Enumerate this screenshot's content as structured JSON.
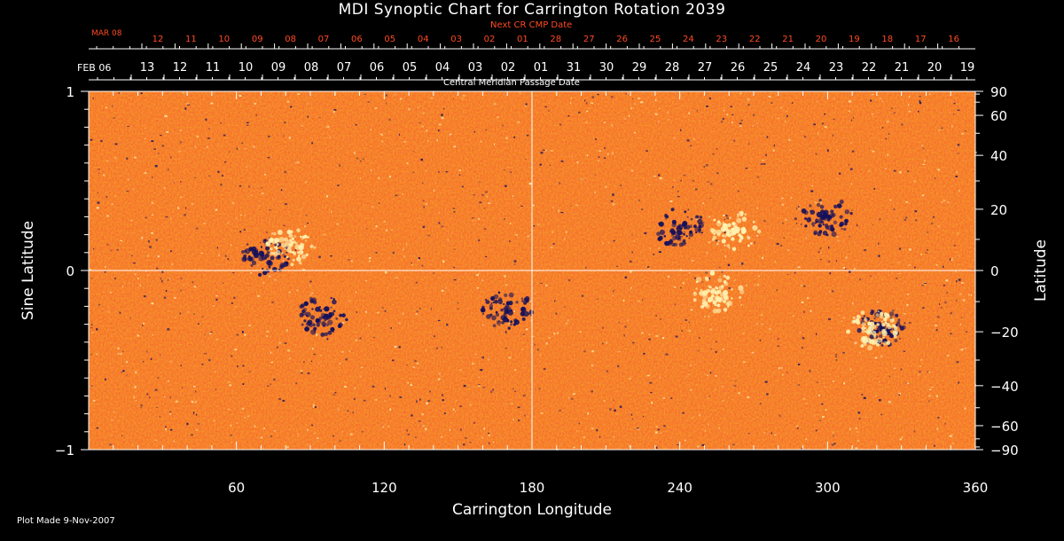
{
  "title": "MDI Synoptic Chart for Carrington Rotation 2039",
  "top_axis": {
    "label": "Next CR CMP Date",
    "start_label": "MAR 08",
    "ticks": [
      "12",
      "11",
      "10",
      "09",
      "08",
      "07",
      "06",
      "05",
      "04",
      "03",
      "02",
      "01",
      "28",
      "27",
      "26",
      "25",
      "24",
      "23",
      "22",
      "21",
      "20",
      "19",
      "18",
      "17",
      "16"
    ]
  },
  "date_axis": {
    "label": "Central Meridian Passage Date",
    "start_label": "FEB 06",
    "ticks": [
      "13",
      "12",
      "11",
      "10",
      "09",
      "08",
      "07",
      "06",
      "05",
      "04",
      "03",
      "02",
      "01",
      "31",
      "30",
      "29",
      "28",
      "27",
      "26",
      "25",
      "24",
      "23",
      "22",
      "21",
      "20",
      "19"
    ]
  },
  "plot_made": "Plot Made  9-Nov-2007",
  "colors": {
    "background": "#000000",
    "field_base": "#ee4a0c",
    "positive_flux": "#fff2b0",
    "negative_flux": "#14105a",
    "top_axis_text": "#ff4a22",
    "axis": "#ffffff"
  },
  "chart_data": {
    "type": "heatmap",
    "title": "MDI Synoptic Chart for Carrington Rotation 2039",
    "xlabel": "Carrington Longitude",
    "ylabel_left": "Sine Latitude",
    "ylabel_right": "Latitude",
    "xlim": [
      0,
      360
    ],
    "ylim": [
      -1,
      1
    ],
    "x_ticks": [
      60,
      120,
      180,
      240,
      300,
      360
    ],
    "x_tick_labels": [
      "60",
      "120",
      "180",
      "240",
      "300",
      "360"
    ],
    "y_ticks_left": [
      1,
      0,
      -1
    ],
    "y_tick_labels_left": [
      "1",
      "0",
      "−1"
    ],
    "y_ticks_right_deg": [
      90,
      60,
      40,
      20,
      0,
      -20,
      -40,
      -60,
      -90
    ],
    "y_tick_labels_right": [
      "90",
      "60",
      "40",
      "20",
      "0",
      "−20",
      "−40",
      "−60",
      "−90"
    ],
    "crosshair": {
      "longitude": 180,
      "sine_latitude": 0
    },
    "active_regions": [
      {
        "longitude": 240,
        "sin_lat": 0.24,
        "polarity": "negative"
      },
      {
        "longitude": 262,
        "sin_lat": 0.22,
        "polarity": "positive"
      },
      {
        "longitude": 322,
        "sin_lat": -0.32,
        "polarity": "negative"
      },
      {
        "longitude": 318,
        "sin_lat": -0.33,
        "polarity": "positive"
      },
      {
        "longitude": 72,
        "sin_lat": 0.08,
        "polarity": "negative"
      },
      {
        "longitude": 82,
        "sin_lat": 0.14,
        "polarity": "positive"
      },
      {
        "longitude": 95,
        "sin_lat": -0.25,
        "polarity": "negative"
      },
      {
        "longitude": 170,
        "sin_lat": -0.22,
        "polarity": "negative"
      },
      {
        "longitude": 255,
        "sin_lat": -0.12,
        "polarity": "positive"
      },
      {
        "longitude": 300,
        "sin_lat": 0.3,
        "polarity": "negative"
      }
    ]
  }
}
